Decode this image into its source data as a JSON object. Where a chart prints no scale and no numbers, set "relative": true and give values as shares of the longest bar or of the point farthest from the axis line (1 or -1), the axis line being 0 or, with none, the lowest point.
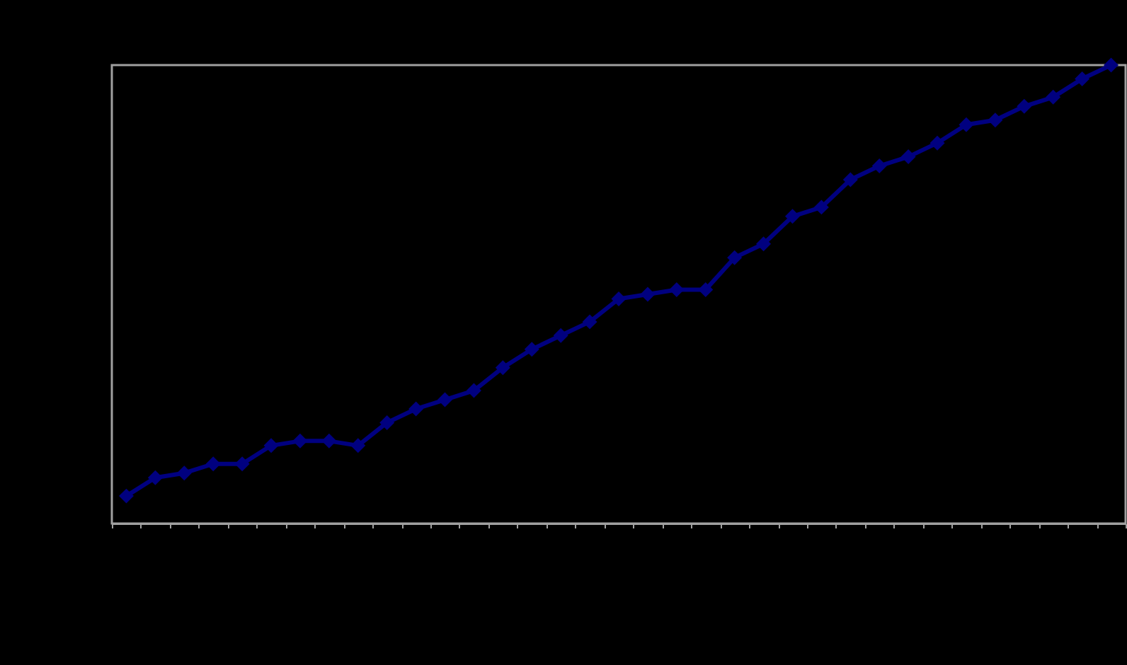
{
  "chart_data": {
    "type": "line",
    "relative": true,
    "marker": "diamond",
    "line_style": "solid",
    "grid": false,
    "legend": false,
    "categories": [
      null,
      null,
      null,
      null,
      null,
      null,
      null,
      null,
      null,
      null,
      null,
      null,
      null,
      null,
      null,
      null,
      null,
      null,
      null,
      null,
      null,
      null,
      null,
      null,
      null,
      null,
      null,
      null,
      null,
      null,
      null,
      null,
      null,
      null,
      null
    ],
    "series": [
      {
        "color": "#000080",
        "values": [
          0.06,
          0.1,
          0.11,
          0.13,
          0.13,
          0.17,
          0.18,
          0.18,
          0.17,
          0.22,
          0.25,
          0.27,
          0.29,
          0.34,
          0.38,
          0.41,
          0.44,
          0.49,
          0.5,
          0.51,
          0.51,
          0.58,
          0.61,
          0.67,
          0.69,
          0.75,
          0.78,
          0.8,
          0.83,
          0.87,
          0.88,
          0.91,
          0.93,
          0.97,
          1.0
        ]
      }
    ]
  }
}
